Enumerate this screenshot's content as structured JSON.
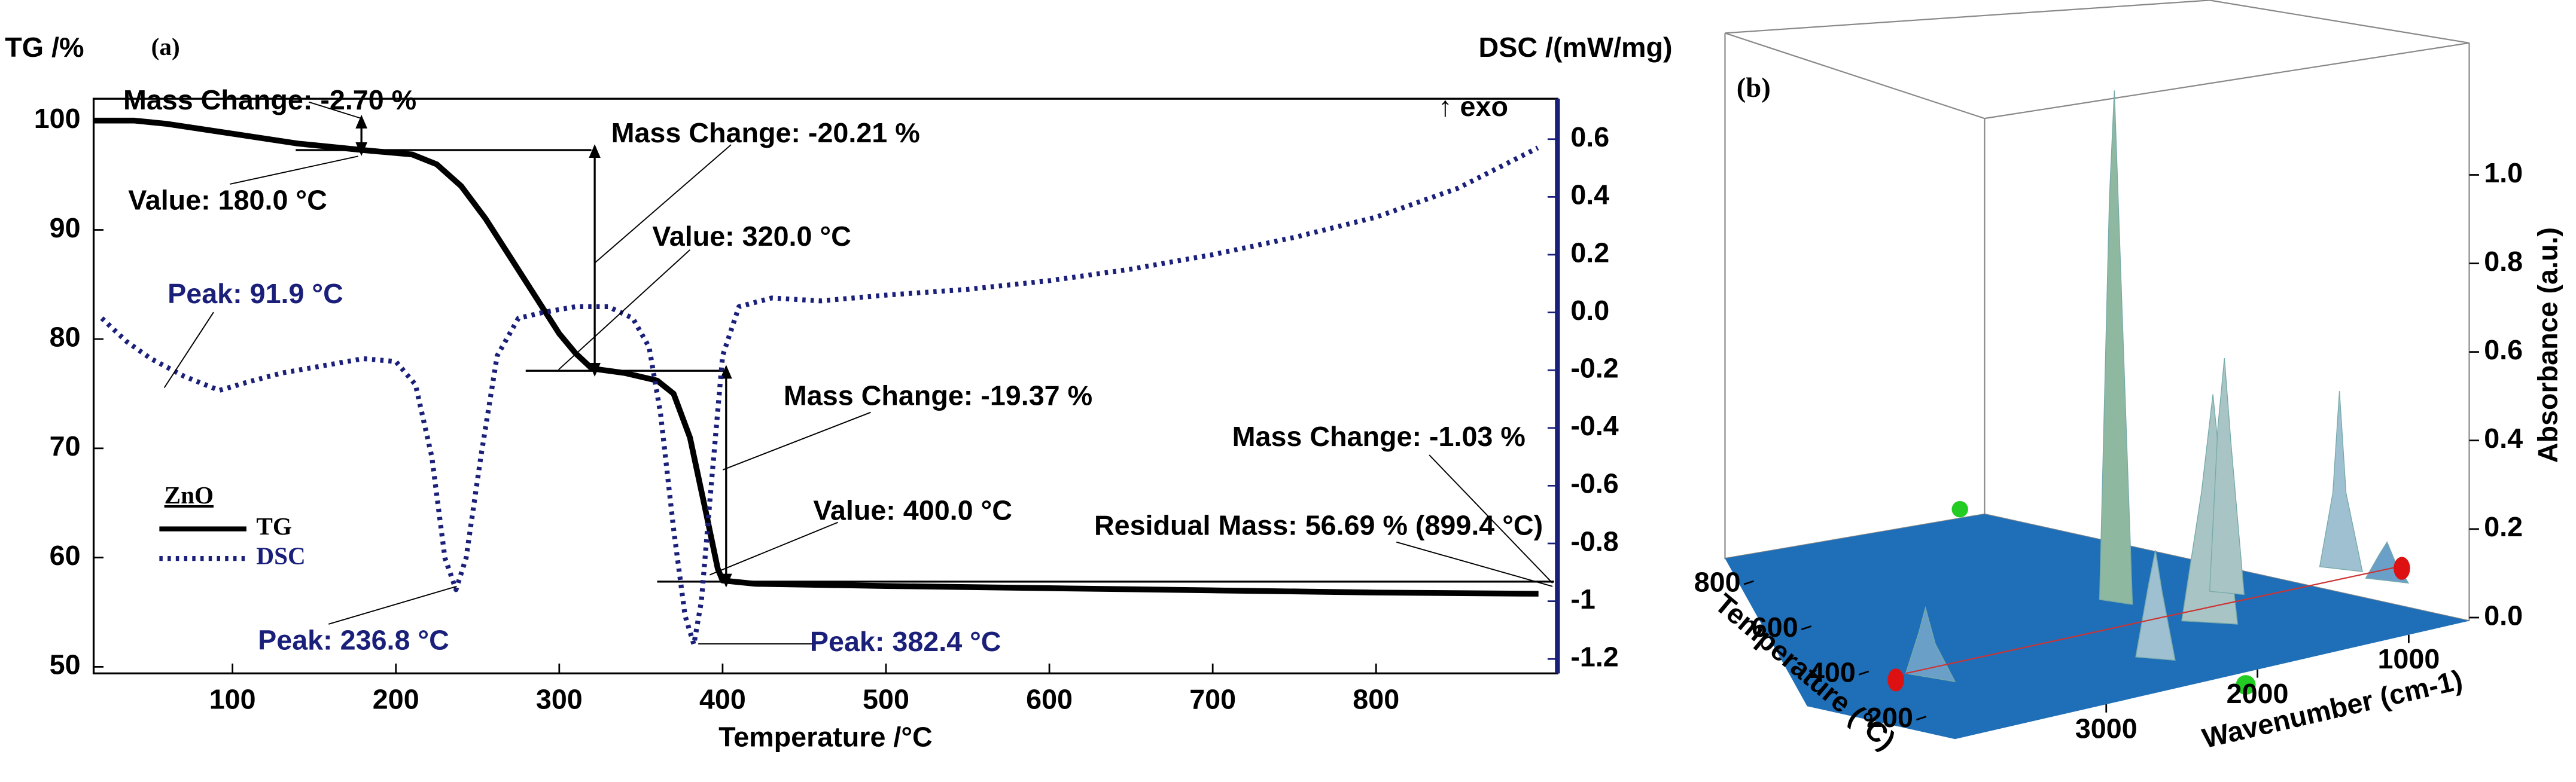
{
  "chart_data": [
    {
      "type": "line",
      "title": "(a)",
      "ylabel": "TG /%",
      "y2label": "DSC /(mW/mg)",
      "xlabel": "Temperature /°C",
      "note": "↑ exo",
      "legend_title": "ZnO",
      "xlim": [
        15,
        911
      ],
      "xticks": [
        100,
        200,
        300,
        400,
        500,
        600,
        700,
        800
      ],
      "ylim": [
        49.4,
        102
      ],
      "yticks": [
        50,
        60,
        70,
        80,
        90,
        100
      ],
      "y2lim": [
        -1.25,
        0.74
      ],
      "y2ticks": [
        0.6,
        0.4,
        0.2,
        {
          "value": 0,
          "label": "0.0"
        },
        -0.2,
        -0.4,
        -0.6,
        -0.8,
        -1.0,
        -1.2
      ],
      "series": [
        {
          "name": "TG",
          "color": "#000000",
          "style": "solid",
          "x": [
            15,
            40,
            60,
            100,
            140,
            180,
            210,
            225,
            240,
            255,
            270,
            285,
            300,
            310,
            320,
            340,
            360,
            370,
            380,
            390,
            397,
            400,
            420,
            500,
            600,
            700,
            800,
            899.4
          ],
          "values": [
            100,
            100,
            99.7,
            98.8,
            97.9,
            97.3,
            96.9,
            96,
            94,
            91,
            87.5,
            84,
            80.5,
            78.7,
            77.3,
            76.9,
            76.2,
            75,
            71,
            64,
            59,
            57.9,
            57.6,
            57.4,
            57.2,
            57,
            56.8,
            56.69
          ]
        },
        {
          "name": "DSC",
          "color": "#1a1f7a",
          "style": "dotted",
          "axis": "y2",
          "x": [
            20,
            35,
            50,
            70,
            91.9,
            110,
            130,
            160,
            180,
            200,
            212,
            222,
            230,
            236.8,
            243,
            252,
            262,
            275,
            290,
            310,
            330,
            345,
            355,
            362,
            370,
            377,
            382.4,
            387,
            393,
            400,
            410,
            430,
            460,
            500,
            550,
            600,
            650,
            700,
            750,
            800,
            850,
            899
          ],
          "values": [
            -0.02,
            -0.1,
            -0.16,
            -0.22,
            -0.27,
            -0.24,
            -0.21,
            -0.18,
            -0.16,
            -0.17,
            -0.25,
            -0.5,
            -0.85,
            -0.96,
            -0.85,
            -0.5,
            -0.15,
            -0.02,
            0.0,
            0.02,
            0.02,
            -0.02,
            -0.12,
            -0.35,
            -0.75,
            -1.05,
            -1.15,
            -1.0,
            -0.6,
            -0.15,
            0.02,
            0.05,
            0.04,
            0.06,
            0.08,
            0.11,
            0.15,
            0.2,
            0.26,
            0.33,
            0.43,
            0.57
          ]
        }
      ],
      "annotations": [
        "Mass Change: -2.70 %",
        "Value: 180.0 °C",
        "Mass Change: -20.21 %",
        "Value: 320.0 °C",
        "Mass Change: -19.37 %",
        "Value: 400.0 °C",
        "Mass Change: -1.03 %",
        "Residual Mass: 56.69 % (899.4 °C)",
        "Peak: 91.9 °C",
        "Peak: 236.8 °C",
        "Peak: 382.4 °C"
      ]
    },
    {
      "type": "surface3d",
      "title": "(b)",
      "zlabel": "Absorbance (a.u.)",
      "ylabel": "Temperature (°C)",
      "xlabel": "Wavenumber (cm-1)",
      "zlim": [
        0,
        1.12
      ],
      "zticks": [
        {
          "value": 0,
          "label": "0.0"
        },
        0.2,
        0.4,
        0.6,
        0.8,
        {
          "value": 1,
          "label": "1.0"
        }
      ],
      "yticks": [
        200,
        400,
        600,
        800
      ],
      "ylim": [
        100,
        900
      ],
      "xticks": [
        3000,
        2000,
        1000
      ],
      "xlim": [
        4000,
        600
      ],
      "color": "#1f6fb8"
    }
  ]
}
